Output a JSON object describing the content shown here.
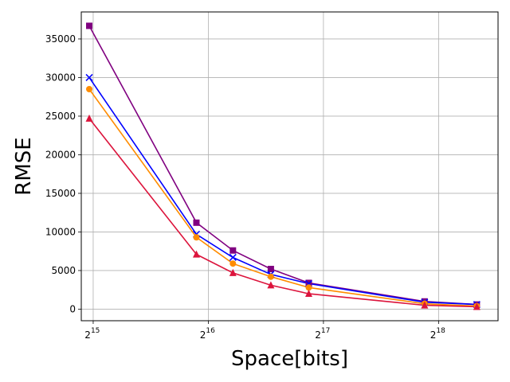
{
  "chart_data": {
    "type": "line",
    "title": "",
    "xlabel": "Space[bits]",
    "ylabel": "RMSE",
    "x_scale": "log2",
    "x_ticks": [
      {
        "value": 32768,
        "base": "2",
        "exp": "15"
      },
      {
        "value": 65536,
        "base": "2",
        "exp": "16"
      },
      {
        "value": 131072,
        "base": "2",
        "exp": "17"
      },
      {
        "value": 262144,
        "base": "2",
        "exp": "18"
      }
    ],
    "y_ticks": [
      "0",
      "5000",
      "10000",
      "15000",
      "20000",
      "25000",
      "30000",
      "35000"
    ],
    "xlim": [
      30500,
      375000
    ],
    "ylim": [
      -1500,
      38500
    ],
    "grid": true,
    "legend": "none",
    "series": [
      {
        "color": "#800080",
        "marker": "square",
        "x": [
          32000,
          61000,
          76000,
          95500,
          120000,
          241000,
          330000
        ],
        "y": [
          36700,
          11200,
          7600,
          5200,
          3400,
          1000,
          600
        ]
      },
      {
        "color": "#0000ff",
        "marker": "x",
        "x": [
          32000,
          61000,
          76000,
          95500,
          120000,
          241000,
          330000
        ],
        "y": [
          30000,
          9700,
          6700,
          4500,
          3300,
          900,
          600
        ]
      },
      {
        "color": "#ff8c00",
        "marker": "circle",
        "x": [
          32000,
          61000,
          76000,
          95500,
          120000,
          241000,
          330000
        ],
        "y": [
          28500,
          9300,
          5900,
          4200,
          2800,
          700,
          400
        ]
      },
      {
        "color": "#dc143c",
        "marker": "triangle",
        "x": [
          32000,
          61000,
          76000,
          95500,
          120000,
          241000,
          330000
        ],
        "y": [
          24700,
          7100,
          4700,
          3100,
          2000,
          500,
          300
        ]
      }
    ]
  }
}
